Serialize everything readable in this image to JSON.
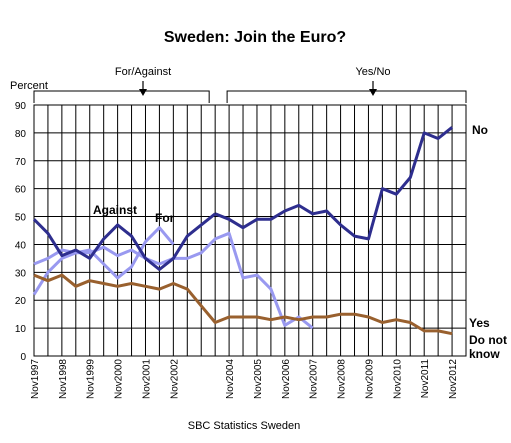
{
  "chart_data": {
    "type": "line",
    "title": "Sweden: Join the Euro?",
    "ylabel": "Percent",
    "source": "SBC Statistics Sweden",
    "ylim": [
      0,
      90
    ],
    "yticks": [
      0,
      10,
      20,
      30,
      40,
      50,
      60,
      70,
      80,
      90
    ],
    "grid": true,
    "period_labels": [
      "For/Against",
      "Yes/No"
    ],
    "x_tick_labels": [
      "Nov1997",
      "Nov1998",
      "Nov1999",
      "Nov2000",
      "Nov2001",
      "Nov2002",
      "Nov2004",
      "Nov2005",
      "Nov2006",
      "Nov2007",
      "Nov2008",
      "Nov2009",
      "Nov2010",
      "Nov2011",
      "Nov2012"
    ],
    "series": [
      {
        "name": "Against",
        "color": "#2e2e8e",
        "values": [
          49,
          44,
          36,
          38,
          35,
          42,
          47,
          43,
          35,
          31,
          35,
          43,
          47,
          51
        ]
      },
      {
        "name": "For",
        "color": "#9999f0",
        "values": [
          22,
          30,
          35,
          37,
          38,
          33,
          28,
          32,
          41,
          46,
          40
        ]
      },
      {
        "name": "No",
        "color": "#2e2e8e",
        "values": [
          51,
          49,
          46,
          49,
          49,
          52,
          54,
          51,
          52,
          47,
          43,
          42,
          60,
          58,
          64,
          80,
          78,
          82
        ]
      },
      {
        "name": "Yes",
        "color": "#9999f0",
        "values": [
          33,
          35,
          38,
          37,
          37,
          39,
          36,
          38,
          35,
          33,
          35,
          35,
          37,
          42,
          44,
          28,
          29,
          24,
          11,
          14,
          10
        ]
      },
      {
        "name": "Do not know",
        "color": "#99602e",
        "values": [
          29,
          27,
          29,
          25,
          27,
          26,
          25,
          26,
          25,
          24,
          26,
          24,
          18,
          12,
          14,
          14,
          14,
          13,
          14,
          13,
          14,
          14,
          15,
          15,
          14,
          12,
          13,
          12,
          9,
          9,
          8
        ]
      }
    ],
    "labels": {
      "against": "Against",
      "for": "For",
      "no": "No",
      "yes": "Yes",
      "dnk_line1": "Do not",
      "dnk_line2": "know"
    }
  }
}
